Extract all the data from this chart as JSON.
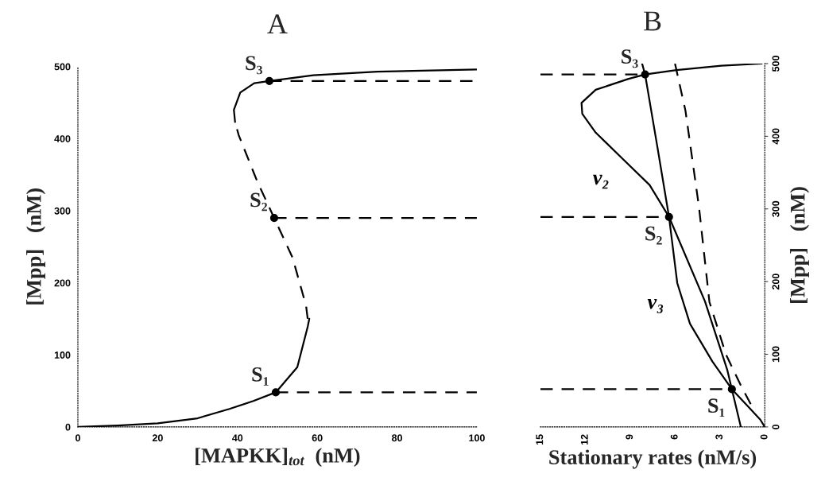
{
  "chart_data": [
    {
      "type": "line",
      "title": "A",
      "xlabel": "[MAPKK]$_{tot}$  (nM)",
      "ylabel": "[Mpp]   (nM)",
      "xlim": [
        0,
        100
      ],
      "xticks": [
        0,
        20,
        40,
        60,
        80,
        100
      ],
      "ylim": [
        0,
        500
      ],
      "yticks": [
        0,
        100,
        200,
        300,
        400,
        500
      ],
      "grid": false,
      "legend": false,
      "series": [
        {
          "type": "line",
          "color": "#000000",
          "line_style": "solid",
          "x": [
            0,
            10,
            20,
            30,
            38,
            44,
            49.6,
            55,
            57.6,
            58
          ],
          "values": [
            0,
            2,
            5,
            12,
            25,
            36,
            48,
            83,
            139,
            150
          ]
        },
        {
          "type": "line",
          "color": "#000000",
          "line_style": "dashed",
          "x": [
            57.6,
            57.2,
            53.8,
            49.2,
            45,
            40.3,
            39.4
          ],
          "values": [
            150,
            168,
            235,
            290,
            340,
            405,
            423
          ]
        },
        {
          "type": "line",
          "color": "#000000",
          "line_style": "solid",
          "x": [
            39.4,
            39.1,
            40.7,
            44.2,
            48,
            59,
            75,
            100
          ],
          "values": [
            423,
            440,
            464,
            477,
            480,
            488,
            493,
            496
          ]
        },
        {
          "type": "line",
          "color": "#000000",
          "line_style": "dashed",
          "x": [
            49.6,
            100
          ],
          "values": [
            48,
            48
          ]
        },
        {
          "type": "line",
          "color": "#000000",
          "line_style": "dashed",
          "x": [
            49.2,
            100
          ],
          "values": [
            290,
            290
          ]
        },
        {
          "type": "line",
          "color": "#000000",
          "line_style": "dashed",
          "x": [
            48,
            100
          ],
          "values": [
            480,
            480
          ]
        },
        {
          "type": "scatter",
          "color": "#000000",
          "marker": "circle",
          "x": [
            49.6,
            49.2,
            48
          ],
          "values": [
            48,
            290,
            480
          ]
        }
      ],
      "annotations": [
        {
          "text": "S₁",
          "x": 49.6,
          "y": 48
        },
        {
          "text": "S₂",
          "x": 49.2,
          "y": 290
        },
        {
          "text": "S₃",
          "x": 48,
          "y": 480
        }
      ]
    },
    {
      "type": "line",
      "title": "B",
      "xlabel": "Stationary rates (nM/s)",
      "ylabel": "[Mpp]   (nM)",
      "xlim": [
        15,
        0
      ],
      "xticks": [
        15,
        12,
        9,
        6,
        3,
        0
      ],
      "ylim": [
        0,
        500
      ],
      "yticks": [
        0,
        100,
        200,
        300,
        400,
        500
      ],
      "grid": false,
      "legend": false,
      "series": [
        {
          "type": "line",
          "name": "v₂",
          "color": "#000000",
          "line_style": "solid",
          "x": [
            0.2,
            2.9,
            5.9,
            8.0,
            9.1,
            11.3,
            12.25,
            12.2,
            11.3,
            9.5,
            7.7,
            6.4,
            4.0,
            2.5,
            2.2,
            1.2,
            0.3,
            0
          ],
          "values": [
            500,
            497,
            491,
            485,
            479,
            464,
            446,
            431,
            405,
            369,
            333,
            289,
            173,
            78,
            52,
            30,
            10,
            0
          ]
        },
        {
          "type": "line",
          "name": "v₃",
          "color": "#000000",
          "line_style": "solid",
          "x": [
            1.6,
            2.2,
            3.5,
            5.0,
            5.85,
            6.4,
            7.2,
            8.0,
            8.2
          ],
          "values": [
            0,
            52,
            90,
            142,
            198,
            289,
            388,
            485,
            500
          ]
        },
        {
          "type": "line",
          "color": "#000000",
          "line_style": "dashed",
          "x": [
            6.0,
            5.3,
            4.4,
            3.7,
            2.6,
            1.55,
            0.8
          ],
          "values": [
            500,
            435,
            303,
            172,
            100,
            55,
            26
          ]
        },
        {
          "type": "line",
          "color": "#000000",
          "line_style": "dashed",
          "x": [
            15,
            2.2
          ],
          "values": [
            52,
            52
          ]
        },
        {
          "type": "line",
          "color": "#000000",
          "line_style": "dashed",
          "x": [
            15,
            6.4
          ],
          "values": [
            289,
            289
          ]
        },
        {
          "type": "line",
          "color": "#000000",
          "line_style": "dashed",
          "x": [
            15,
            8.0
          ],
          "values": [
            485,
            485
          ]
        },
        {
          "type": "scatter",
          "color": "#000000",
          "marker": "circle",
          "x": [
            2.2,
            6.4,
            8.0
          ],
          "values": [
            52,
            289,
            485
          ]
        }
      ],
      "annotations": [
        {
          "text": "S₁",
          "x": 2.2,
          "y": 52
        },
        {
          "text": "S₂",
          "x": 6.4,
          "y": 289
        },
        {
          "text": "S₃",
          "x": 8.0,
          "y": 485
        }
      ]
    }
  ]
}
